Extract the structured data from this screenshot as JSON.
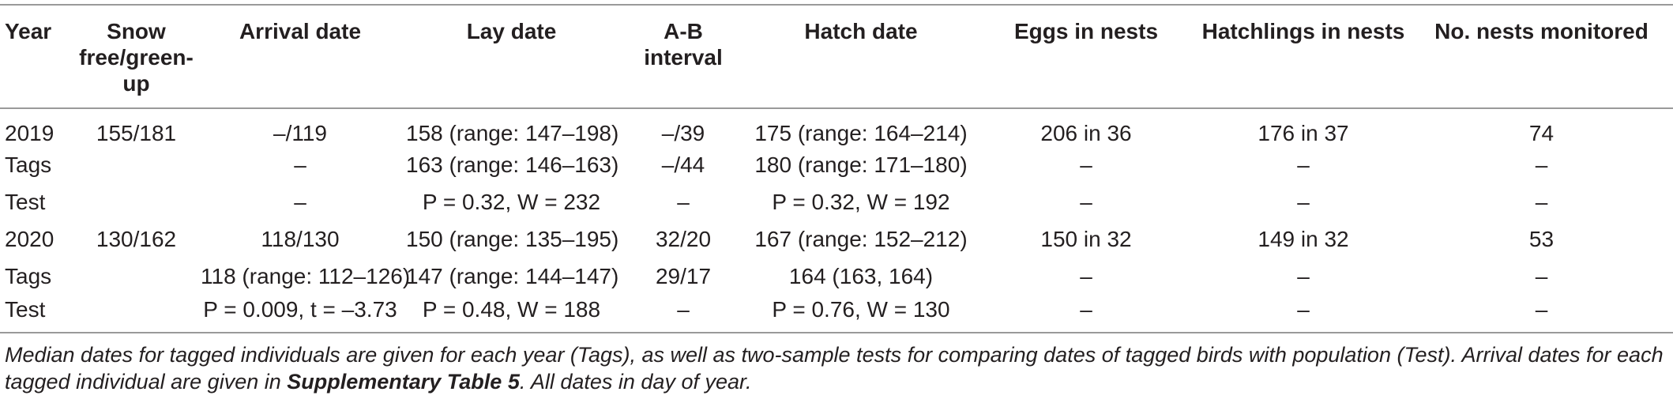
{
  "table": {
    "headers": [
      "Year",
      "Snow free/green-up",
      "Arrival date",
      "Lay date",
      "A-B interval",
      "Hatch date",
      "Eggs in nests",
      "Hatchlings in nests",
      "No. nests monitored"
    ],
    "rows": [
      [
        "2019",
        "155/181",
        "–/119",
        "158 (range: 147–198)",
        "–/39",
        "175 (range: 164–214)",
        "206 in 36",
        "176 in 37",
        "74"
      ],
      [
        "Tags",
        "",
        "–",
        "163 (range: 146–163)",
        "–/44",
        "180 (range: 171–180)",
        "–",
        "–",
        "–"
      ],
      [
        "Test",
        "",
        "–",
        "P = 0.32, W = 232",
        "–",
        "P = 0.32, W = 192",
        "–",
        "–",
        "–"
      ],
      [
        "2020",
        "130/162",
        "118/130",
        "150 (range: 135–195)",
        "32/20",
        "167 (range: 152–212)",
        "150 in 32",
        "149 in 32",
        "53"
      ],
      [
        "Tags",
        "",
        "118 (range: 112–126)",
        "147 (range: 144–147)",
        "29/17",
        "164 (163, 164)",
        "–",
        "–",
        "–"
      ],
      [
        "Test",
        "",
        "P = 0.009, t = –3.73",
        "P = 0.48, W = 188",
        "–",
        "P = 0.76, W = 130",
        "–",
        "–",
        "–"
      ]
    ]
  },
  "footnote": {
    "before": "Median dates for tagged individuals are given for each year (Tags), as well as two-sample tests for comparing dates of tagged birds with population (Test). Arrival dates for each tagged individual are given in ",
    "ref": "Supplementary Table 5",
    "after": ". All dates in day of year."
  }
}
